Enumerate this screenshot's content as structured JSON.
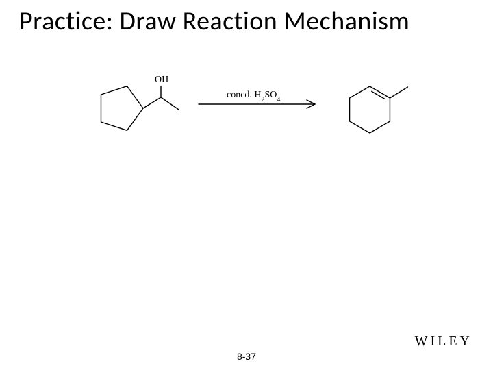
{
  "title": "Practice: Draw Reaction Mechanism",
  "page_number": "8-37",
  "publisher": "WILEY",
  "reaction": {
    "reagent_prefix": "concd. H",
    "reagent_sub1": "2",
    "reagent_mid": "SO",
    "reagent_sub2": "4",
    "oh_label": "OH",
    "colors": {
      "stroke": "#000000",
      "text": "#000000",
      "background": "#ffffff"
    },
    "line_width": 1.4,
    "font_family_serif": "Times New Roman, serif",
    "label_fontsize": 14,
    "reagent_fontsize": 14
  }
}
